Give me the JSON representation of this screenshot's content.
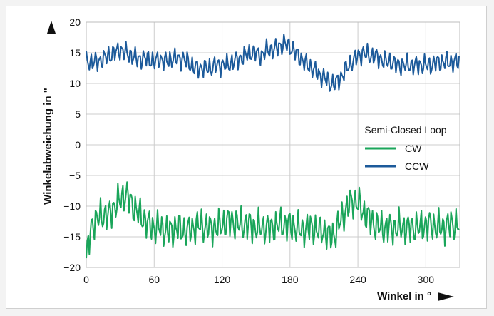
{
  "chart_data": {
    "type": "line",
    "xlabel": "Winkel in °",
    "ylabel": "Winkelabweichung in \"",
    "xlim": [
      0,
      330
    ],
    "ylim": [
      -20,
      20
    ],
    "xticks": [
      "0",
      "60",
      "120",
      "180",
      "240",
      "300"
    ],
    "yticks": [
      "20",
      "15",
      "10",
      "5",
      "0",
      "−5",
      "−10",
      "−15",
      "−20"
    ],
    "grid": true,
    "legend": {
      "title": "Semi-Closed Loop",
      "placement": "center-right",
      "entries": [
        "CW",
        "CCW"
      ]
    },
    "colors": {
      "CW": "#1aa55a",
      "CCW": "#1c5a9a",
      "grid": "#cccccc"
    },
    "series": [
      {
        "name": "CW",
        "x": [
          0,
          5,
          10,
          15,
          20,
          25,
          30,
          35,
          40,
          45,
          50,
          55,
          60,
          65,
          70,
          75,
          80,
          85,
          90,
          95,
          100,
          105,
          110,
          115,
          120,
          125,
          130,
          135,
          140,
          145,
          150,
          155,
          160,
          165,
          170,
          175,
          180,
          185,
          190,
          195,
          200,
          205,
          210,
          215,
          220,
          225,
          230,
          235,
          240,
          245,
          250,
          255,
          260,
          265,
          270,
          275,
          280,
          285,
          290,
          295,
          300,
          305,
          310,
          315,
          320,
          325,
          330
        ],
        "values": [
          -18.5,
          -13,
          -12,
          -11.5,
          -11.5,
          -10,
          -9,
          -8,
          -9.5,
          -11,
          -12,
          -13,
          -13.5,
          -13.5,
          -14,
          -14,
          -13.5,
          -14,
          -14,
          -13.5,
          -13,
          -13.5,
          -13.5,
          -13.5,
          -13,
          -12.5,
          -12.5,
          -13,
          -13,
          -13,
          -13.5,
          -13.5,
          -13.5,
          -13.5,
          -13,
          -13,
          -13,
          -13.5,
          -14,
          -13.5,
          -13.5,
          -14,
          -14,
          -15,
          -14.5,
          -12,
          -10.5,
          -9,
          -9.5,
          -11,
          -12,
          -13,
          -13.5,
          -13.5,
          -13.5,
          -13.5,
          -13.5,
          -13.5,
          -13.5,
          -13.5,
          -13,
          -13,
          -13.5,
          -13.5,
          -13,
          -13,
          -13
        ]
      },
      {
        "name": "CCW",
        "x": [
          0,
          5,
          10,
          15,
          20,
          25,
          30,
          35,
          40,
          45,
          50,
          55,
          60,
          65,
          70,
          75,
          80,
          85,
          90,
          95,
          100,
          105,
          110,
          115,
          120,
          125,
          130,
          135,
          140,
          145,
          150,
          155,
          160,
          165,
          170,
          175,
          180,
          185,
          190,
          195,
          200,
          205,
          210,
          215,
          220,
          225,
          230,
          235,
          240,
          245,
          250,
          255,
          260,
          265,
          270,
          275,
          280,
          285,
          290,
          295,
          300,
          305,
          310,
          315,
          320,
          325,
          330
        ],
        "values": [
          13.5,
          13.5,
          13.5,
          14,
          14.5,
          15,
          15.5,
          15,
          14.5,
          14,
          14,
          14,
          13.5,
          14,
          13.5,
          14,
          14,
          14,
          13.5,
          12.5,
          12.5,
          12.5,
          12.5,
          13,
          13,
          13,
          13.5,
          14,
          14.5,
          15,
          15,
          14.5,
          15.5,
          15.5,
          16,
          16.5,
          16,
          15,
          14,
          13,
          12.5,
          11.5,
          11,
          10,
          10,
          11,
          12.5,
          13.5,
          14.5,
          15,
          14.5,
          14.5,
          14,
          13.5,
          13.5,
          13,
          13,
          13,
          13,
          13,
          13,
          13,
          13.5,
          13.5,
          13.5,
          13.5,
          13.5
        ]
      }
    ]
  }
}
